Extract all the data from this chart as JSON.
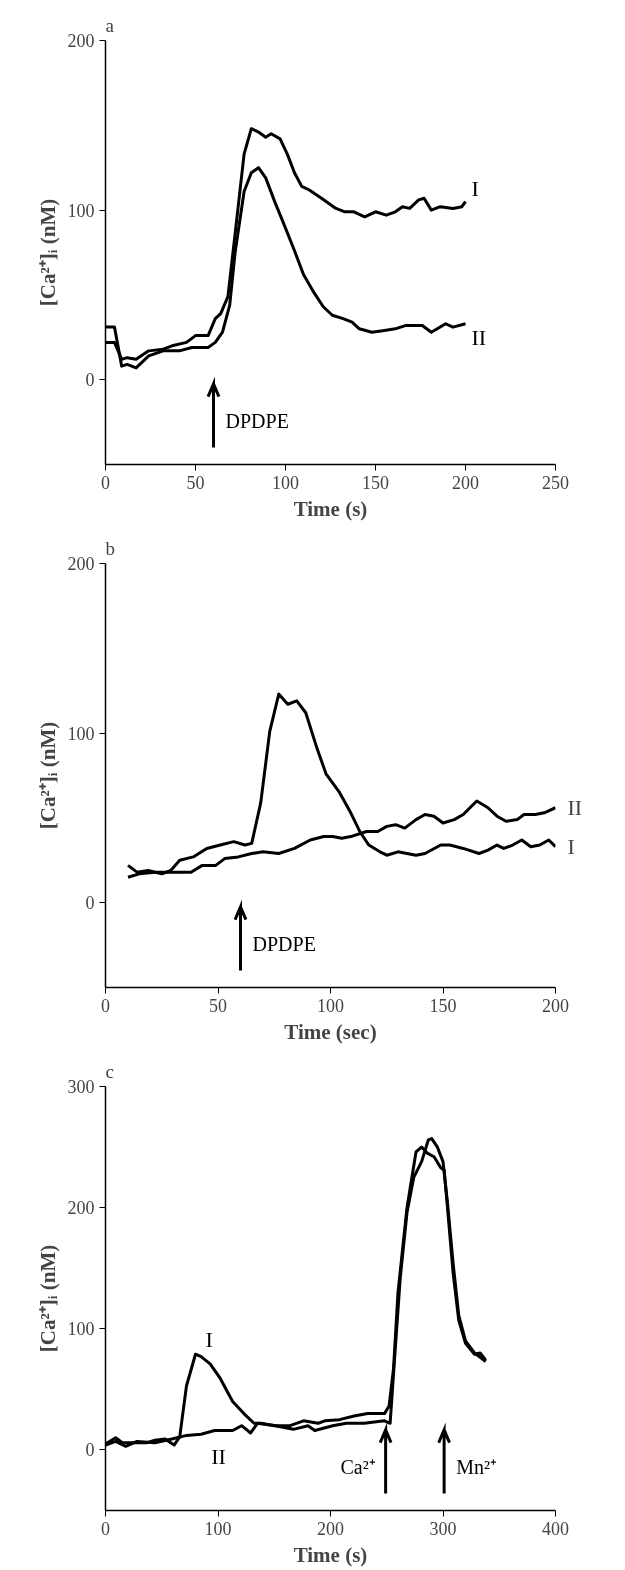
{
  "chart_data": [
    {
      "type": "line",
      "title": "a",
      "xlabel": "Time (s)",
      "ylabel": "[Ca²⁺]ᵢ (nM)",
      "xlim": [
        0,
        250
      ],
      "xticks": [
        0,
        50,
        100,
        150,
        200,
        250
      ],
      "ylim": [
        -50,
        200
      ],
      "yticks": [
        0,
        100,
        200
      ],
      "grid": false,
      "legend": false,
      "marker": "none",
      "line_style": "solid",
      "ref_lines": [
        {
          "axis": "x",
          "value": 60,
          "label": "DPDPE"
        }
      ],
      "series": [
        {
          "name": "I",
          "color": "#000000",
          "x": [
            0,
            5,
            9,
            12,
            17,
            24,
            32,
            37,
            45,
            50,
            57,
            61,
            64,
            68,
            72,
            77,
            81,
            85,
            89,
            92,
            97,
            101,
            105,
            109,
            113,
            120,
            128,
            133,
            138,
            144,
            150,
            156,
            161,
            165,
            169,
            174,
            177,
            181,
            186,
            193,
            198,
            200
          ],
          "values": [
            22,
            22,
            12,
            13,
            12,
            17,
            18,
            20,
            22,
            26,
            26,
            36,
            39,
            49,
            86,
            133,
            148,
            146,
            143,
            145,
            142,
            133,
            122,
            114,
            112,
            107,
            101,
            99,
            99,
            96,
            99,
            97,
            99,
            102,
            101,
            106,
            107,
            100,
            102,
            101,
            102,
            105
          ]
        },
        {
          "name": "II",
          "color": "#000000",
          "x": [
            0,
            5,
            9,
            12,
            17,
            24,
            32,
            41,
            48,
            57,
            61,
            65,
            69,
            72,
            77,
            81,
            85,
            89,
            94,
            99,
            105,
            110,
            116,
            121,
            126,
            132,
            137,
            141,
            148,
            155,
            161,
            167,
            176,
            181,
            189,
            193,
            200
          ],
          "values": [
            31,
            31,
            8,
            9,
            7,
            14,
            17,
            17,
            19,
            19,
            22,
            28,
            44,
            75,
            111,
            122,
            125,
            119,
            105,
            92,
            76,
            62,
            51,
            43,
            38,
            36,
            34,
            30,
            28,
            29,
            30,
            32,
            32,
            28,
            33,
            31,
            33
          ]
        }
      ]
    },
    {
      "type": "line",
      "title": "b",
      "xlabel": "Time (sec)",
      "ylabel": "[Ca²⁺]ᵢ (nM)",
      "xlim": [
        0,
        200
      ],
      "xticks": [
        0,
        50,
        100,
        150,
        200
      ],
      "ylim": [
        -50,
        200
      ],
      "yticks": [
        0,
        100,
        200
      ],
      "grid": false,
      "legend": false,
      "marker": "none",
      "line_style": "solid",
      "ref_lines": [
        {
          "axis": "x",
          "value": 60,
          "label": "DPDPE"
        }
      ],
      "series": [
        {
          "name": "I",
          "color": "#000000",
          "x": [
            10,
            14,
            19,
            25,
            29,
            33,
            39,
            45,
            51,
            57,
            62,
            65,
            69,
            73,
            77,
            81,
            85,
            89,
            94,
            98,
            104,
            109,
            113,
            117,
            122,
            125,
            130,
            138,
            142,
            149,
            153,
            159,
            166,
            170,
            174,
            177,
            181,
            185,
            189,
            193,
            197,
            200
          ],
          "values": [
            22,
            18,
            19,
            17,
            19,
            25,
            27,
            32,
            34,
            36,
            34,
            35,
            59,
            101,
            123,
            117,
            119,
            112,
            91,
            76,
            65,
            53,
            42,
            34,
            30,
            28,
            30,
            28,
            29,
            34,
            34,
            32,
            29,
            31,
            34,
            32,
            34,
            37,
            33,
            34,
            37,
            33
          ]
        },
        {
          "name": "II",
          "color": "#000000",
          "x": [
            10,
            15,
            22,
            27,
            32,
            38,
            43,
            49,
            53,
            59,
            65,
            70,
            77,
            84,
            91,
            97,
            101,
            105,
            109,
            116,
            121,
            125,
            129,
            133,
            138,
            142,
            146,
            150,
            155,
            159,
            165,
            170,
            174,
            178,
            183,
            186,
            191,
            195,
            200
          ],
          "values": [
            15,
            17,
            18,
            18,
            18,
            18,
            22,
            22,
            26,
            27,
            29,
            30,
            29,
            32,
            37,
            39,
            39,
            38,
            39,
            42,
            42,
            45,
            46,
            44,
            49,
            52,
            51,
            47,
            49,
            52,
            60,
            56,
            51,
            48,
            49,
            52,
            52,
            53,
            56
          ]
        }
      ]
    },
    {
      "type": "line",
      "title": "c",
      "xlabel": "Time (s)",
      "ylabel": "[Ca²⁺]ᵢ (nM)",
      "xlim": [
        0,
        400
      ],
      "xticks": [
        0,
        100,
        200,
        300,
        400
      ],
      "ylim": [
        -50,
        300
      ],
      "yticks": [
        0,
        100,
        200,
        300
      ],
      "grid": false,
      "legend": false,
      "marker": "none",
      "line_style": "solid",
      "ref_lines": [
        {
          "axis": "x",
          "value": 249,
          "label": "Ca²⁺"
        },
        {
          "axis": "x",
          "value": 301,
          "label": "Mn²⁺"
        }
      ],
      "series": [
        {
          "name": "I",
          "color": "#000000",
          "x": [
            0,
            9,
            15,
            25,
            37,
            44,
            53,
            61,
            66,
            72,
            80,
            85,
            93,
            102,
            113,
            123,
            132,
            138,
            151,
            164,
            176,
            189,
            195,
            208,
            221,
            233,
            248,
            252,
            256,
            260,
            268,
            276,
            281,
            286,
            292,
            298,
            301,
            304,
            309,
            314,
            320,
            328,
            333,
            338
          ],
          "values": [
            5,
            10,
            6,
            6,
            6,
            8,
            9,
            4,
            11,
            53,
            79,
            77,
            71,
            59,
            40,
            30,
            22,
            22,
            20,
            20,
            24,
            22,
            24,
            25,
            28,
            30,
            30,
            36,
            67,
            130,
            200,
            246,
            250,
            245,
            242,
            233,
            231,
            200,
            146,
            107,
            88,
            79,
            80,
            74
          ]
        },
        {
          "name": "II",
          "color": "#000000",
          "x": [
            0,
            9,
            18,
            28,
            44,
            59,
            72,
            85,
            97,
            113,
            121,
            129,
            135,
            151,
            167,
            180,
            186,
            202,
            214,
            230,
            248,
            253,
            257,
            262,
            268,
            274,
            281,
            287,
            290,
            295,
            300,
            304,
            309,
            314,
            320,
            328,
            338
          ],
          "values": [
            4,
            7,
            3,
            7,
            6,
            9,
            12,
            13,
            16,
            16,
            20,
            14,
            22,
            20,
            17,
            20,
            16,
            20,
            22,
            22,
            24,
            22,
            76,
            142,
            196,
            225,
            238,
            256,
            257,
            250,
            238,
            204,
            154,
            111,
            90,
            80,
            73
          ]
        }
      ]
    }
  ]
}
